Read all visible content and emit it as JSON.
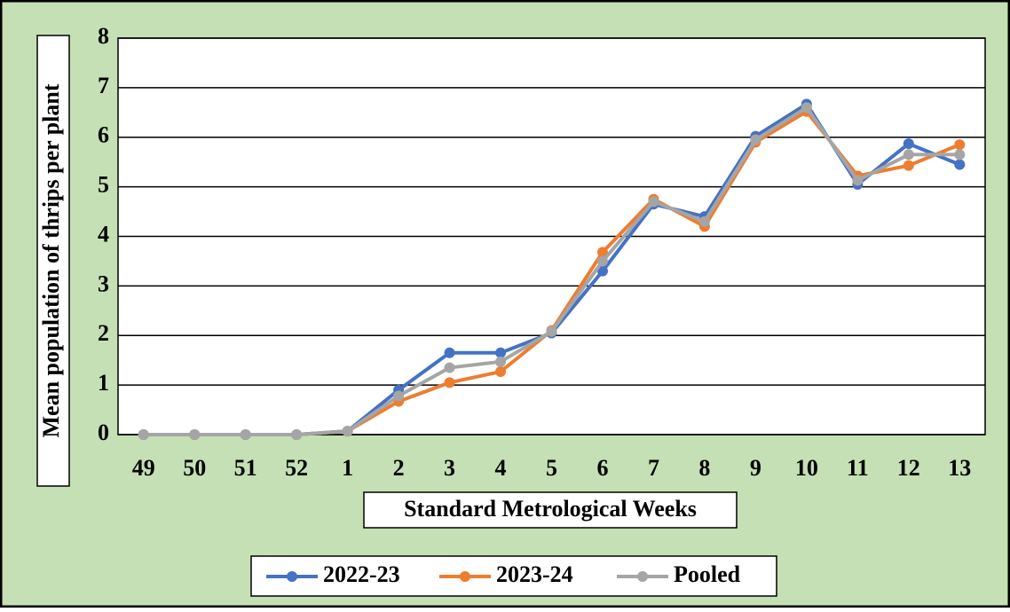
{
  "chart_data": {
    "type": "line",
    "x_label": "Standard Metrological Weeks",
    "y_label": "Mean population of thrips per plant",
    "categories": [
      "49",
      "50",
      "51",
      "52",
      "1",
      "2",
      "3",
      "4",
      "5",
      "6",
      "7",
      "8",
      "9",
      "10",
      "11",
      "12",
      "13"
    ],
    "series": [
      {
        "name": "2022-23",
        "color": "#4472c4",
        "values": [
          0,
          0,
          0,
          0,
          0.07,
          0.9,
          1.65,
          1.65,
          2.05,
          3.3,
          4.65,
          4.4,
          6.02,
          6.67,
          5.05,
          5.87,
          5.45
        ]
      },
      {
        "name": "2023-24",
        "color": "#ed7d31",
        "values": [
          0,
          0,
          0,
          0,
          0.07,
          0.67,
          1.05,
          1.27,
          2.1,
          3.68,
          4.75,
          4.2,
          5.9,
          6.52,
          5.22,
          5.43,
          5.85
        ]
      },
      {
        "name": "Pooled",
        "color": "#a5a5a5",
        "values": [
          0,
          0,
          0,
          0,
          0.07,
          0.78,
          1.35,
          1.47,
          2.08,
          3.5,
          4.7,
          4.3,
          5.95,
          6.6,
          5.13,
          5.65,
          5.65
        ]
      }
    ],
    "ylim": [
      0,
      8
    ],
    "yticks": [
      0,
      1,
      2,
      3,
      4,
      5,
      6,
      7,
      8
    ],
    "grid": true,
    "legend": "bottom"
  }
}
